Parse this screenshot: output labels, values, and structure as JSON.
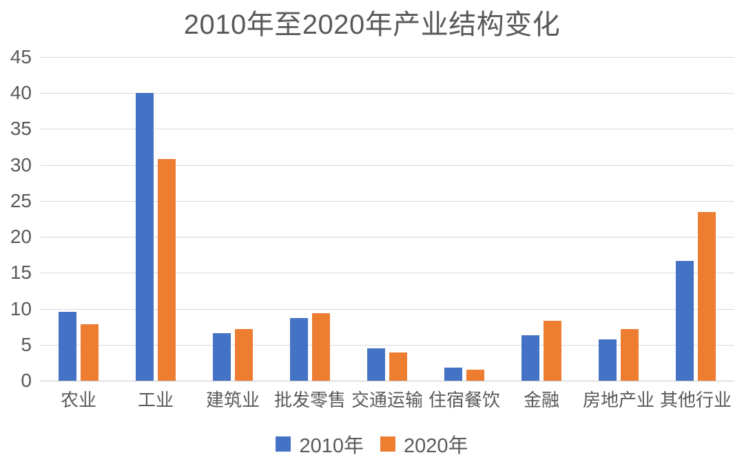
{
  "chart_data": {
    "type": "bar",
    "title": "2010年至2020年产业结构变化",
    "categories": [
      "农业",
      "工业",
      "建筑业",
      "批发零售",
      "交通运输",
      "住宿餐饮",
      "金融",
      "房地产业",
      "其他行业"
    ],
    "series": [
      {
        "name": "2010年",
        "color": "#4472C4",
        "values": [
          9.6,
          40.0,
          6.6,
          8.7,
          4.5,
          1.8,
          6.3,
          5.7,
          16.7
        ]
      },
      {
        "name": "2020年",
        "color": "#ED7D31",
        "values": [
          7.9,
          30.8,
          7.2,
          9.4,
          3.9,
          1.5,
          8.3,
          7.2,
          23.5
        ]
      }
    ],
    "ylim": [
      0,
      45
    ],
    "ytick_step": 5,
    "ytick_labels": [
      "0",
      "5",
      "10",
      "15",
      "20",
      "25",
      "30",
      "35",
      "40",
      "45"
    ],
    "xlabel": "",
    "ylabel": "",
    "grid": "horizontal",
    "legend_position": "bottom",
    "colors": {
      "grid": "#D9D9D9",
      "axis_line": "#C6C6C6",
      "text": "#595959",
      "background": "#FFFFFF"
    }
  }
}
